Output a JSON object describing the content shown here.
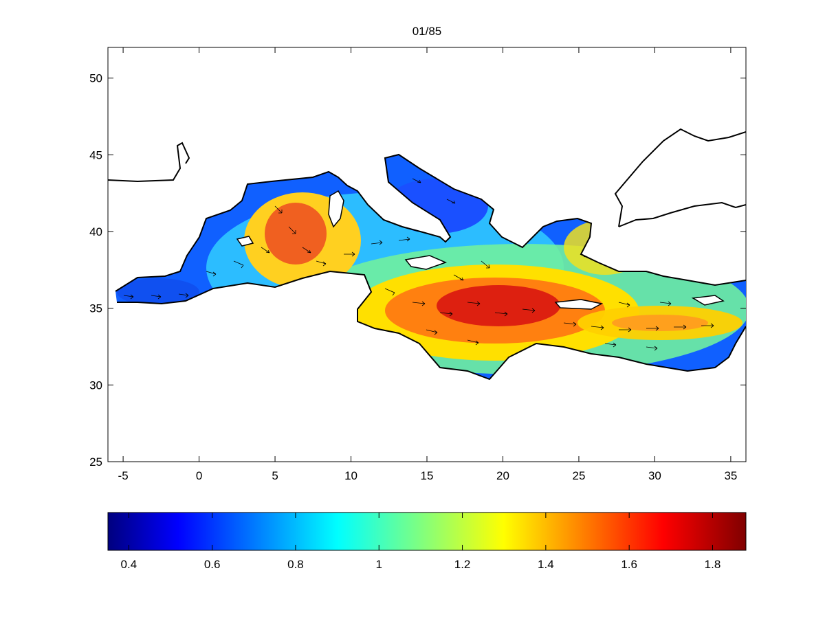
{
  "title": "01/85",
  "map": {
    "lon_range": [
      -6,
      36
    ],
    "lat_range": [
      25,
      52
    ],
    "x_ticks": [
      -5,
      0,
      5,
      10,
      15,
      20,
      25,
      30,
      35
    ],
    "y_ticks": [
      25,
      30,
      35,
      40,
      45,
      50
    ],
    "x_tick_labels": [
      "-5",
      "0",
      "5",
      "10",
      "15",
      "20",
      "25",
      "30",
      "35"
    ],
    "y_tick_labels": [
      "25",
      "30",
      "35",
      "40",
      "45",
      "50"
    ],
    "field": "gridded scalar magnitude with overlaid direction arrows (quiver)",
    "arrow_general_direction": "eastward / south-eastward"
  },
  "colorbar": {
    "colormap": "jet",
    "range": [
      0.35,
      1.88
    ],
    "ticks": [
      0.4,
      0.6,
      0.8,
      1,
      1.2,
      1.4,
      1.6,
      1.8
    ],
    "tick_labels": [
      "0.4",
      "0.6",
      "0.8",
      "1",
      "1.2",
      "1.4",
      "1.6",
      "1.8"
    ]
  }
}
